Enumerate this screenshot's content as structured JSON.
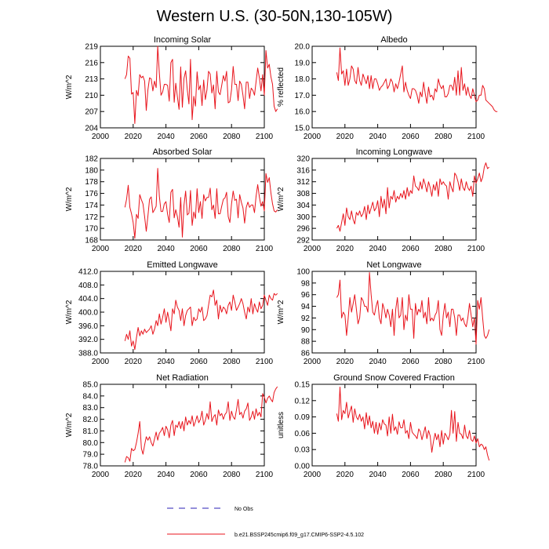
{
  "figure_title": "Western U.S. (30-50N,130-105W)",
  "colors": {
    "model": "#e8141c",
    "obs": "#2a1fb5"
  },
  "legend": {
    "obs_label": "No Obs",
    "model_label": "b.e21.BSSP245cmip6.f09_g17.CMIP6-SSP2-4.5.102"
  },
  "chart_data": [
    {
      "type": "line",
      "title": "Incoming Solar",
      "ylabel": "W/m^2",
      "xlim": [
        2000,
        2100
      ],
      "ylim": [
        204,
        219
      ],
      "xticks": [
        2000,
        2020,
        2040,
        2060,
        2080,
        2100
      ],
      "yticks": [
        204,
        207,
        210,
        213,
        216,
        219
      ],
      "ytick_labels": [
        "204",
        "207",
        "210",
        "213",
        "216",
        "219"
      ],
      "x_start": 2015,
      "values": [
        213.0,
        213.8,
        217.2,
        216.8,
        210.2,
        210.5,
        204.8,
        210.9,
        209.9,
        213.8,
        213.2,
        213.5,
        212.6,
        207.2,
        211.0,
        213.2,
        213.0,
        210.8,
        212.6,
        211.4,
        219.0,
        214.0,
        210.0,
        210.6,
        212.0,
        212.0,
        211.8,
        208.9,
        216.0,
        216.6,
        208.7,
        212.2,
        209.7,
        207.4,
        215.2,
        207.8,
        213.1,
        214.5,
        211.0,
        208.4,
        216.6,
        205.5,
        209.8,
        208.0,
        214.3,
        211.0,
        211.8,
        208.1,
        212.8,
        209.2,
        211.0,
        214.4,
        213.9,
        210.4,
        211.9,
        207.5,
        214.4,
        210.6,
        210.1,
        211.8,
        213.6,
        212.6,
        214.4,
        208.6,
        208.8,
        211.0,
        215.3,
        212.0,
        212.0,
        209.0,
        212.6,
        212.0,
        210.0,
        207.5,
        212.4,
        212.4,
        209.4,
        211.3,
        210.9,
        210.0,
        212.5,
        215.0,
        213.2,
        210.8,
        213.8,
        210.0,
        218.2,
        215.0,
        215.7,
        213.4,
        212.0,
        208.0,
        207.0,
        207.5
      ]
    },
    {
      "type": "line",
      "title": "Albedo",
      "ylabel": "% reflected",
      "xlim": [
        2000,
        2100
      ],
      "ylim": [
        15.0,
        20.0
      ],
      "xticks": [
        2000,
        2020,
        2040,
        2060,
        2080,
        2100
      ],
      "yticks": [
        15,
        16,
        17,
        18,
        19,
        20
      ],
      "ytick_labels": [
        "15.0",
        "16.0",
        "17.0",
        "18.0",
        "19.0",
        "20.0"
      ],
      "x_start": 2015,
      "values": [
        18.4,
        17.9,
        19.9,
        18.3,
        18.5,
        17.6,
        18.6,
        17.6,
        18.0,
        18.8,
        18.6,
        17.9,
        17.7,
        18.7,
        17.9,
        17.6,
        18.3,
        18.0,
        17.7,
        18.2,
        17.4,
        18.2,
        17.4,
        18.0,
        18.0,
        17.7,
        17.3,
        17.5,
        17.6,
        17.8,
        18.0,
        17.4,
        17.6,
        18.0,
        17.8,
        17.2,
        17.7,
        17.4,
        17.8,
        18.3,
        18.8,
        17.2,
        17.8,
        17.3,
        17.0,
        16.8,
        17.4,
        17.4,
        17.3,
        17.0,
        16.5,
        17.2,
        16.9,
        17.8,
        17.1,
        16.5,
        17.5,
        16.9,
        17.0,
        16.7,
        17.4,
        17.2,
        18.0,
        17.6,
        17.4,
        17.6,
        16.9,
        16.9,
        17.1,
        17.6,
        17.6,
        17.3,
        18.1,
        17.0,
        18.5,
        17.0,
        18.7,
        17.3,
        17.7,
        17.0,
        17.5,
        17.0,
        16.8,
        17.4,
        17.0,
        16.6,
        16.7,
        17.0,
        17.0,
        17.6,
        17.4,
        16.7,
        16.6,
        16.5,
        16.4,
        16.3,
        16.1,
        16.0,
        16.0
      ]
    },
    {
      "type": "line",
      "title": "Absorbed Solar",
      "ylabel": "W/m^2",
      "xlim": [
        2000,
        2100
      ],
      "ylim": [
        168,
        182
      ],
      "xticks": [
        2000,
        2020,
        2040,
        2060,
        2080,
        2100
      ],
      "yticks": [
        168,
        170,
        172,
        174,
        176,
        178,
        180,
        182
      ],
      "ytick_labels": [
        "168",
        "170",
        "172",
        "174",
        "176",
        "178",
        "180",
        "182"
      ],
      "x_start": 2015,
      "values": [
        173.6,
        175.0,
        177.4,
        173.6,
        172.5,
        171.0,
        168.3,
        172.4,
        171.7,
        175.8,
        174.9,
        174.2,
        172.0,
        169.5,
        172.1,
        175.0,
        175.4,
        172.7,
        173.2,
        173.8,
        180.3,
        175.5,
        172.9,
        172.9,
        174.2,
        174.6,
        172.4,
        171.0,
        176.2,
        176.7,
        171.8,
        173.2,
        172.0,
        170.2,
        175.3,
        168.5,
        174.0,
        176.4,
        172.3,
        172.6,
        176.5,
        170.5,
        172.8,
        171.7,
        176.8,
        172.7,
        174.6,
        171.7,
        175.8,
        174.7,
        175.3,
        175.3,
        176.9,
        173.2,
        174.0,
        171.7,
        176.8,
        172.5,
        172.5,
        173.8,
        175.0,
        175.2,
        176.2,
        172.0,
        171.0,
        174.2,
        176.4,
        174.8,
        175.0,
        171.8,
        175.8,
        174.5,
        173.5,
        170.9,
        173.6,
        174.5,
        173.6,
        174.0,
        174.0,
        172.7,
        175.5,
        177.5,
        175.4,
        173.8,
        174.6,
        173.0,
        179.4,
        177.9,
        178.7,
        176.1,
        174.2,
        173.0,
        172.8,
        173.2
      ]
    },
    {
      "type": "line",
      "title": "Incoming Longwave",
      "ylabel": "W/m^2",
      "xlim": [
        2000,
        2100
      ],
      "ylim": [
        292,
        320
      ],
      "xticks": [
        2000,
        2020,
        2040,
        2060,
        2080,
        2100
      ],
      "yticks": [
        292,
        296,
        300,
        304,
        308,
        312,
        316,
        320
      ],
      "ytick_labels": [
        "292",
        "296",
        "300",
        "304",
        "308",
        "312",
        "316",
        "320"
      ],
      "x_start": 2015,
      "values": [
        296.0,
        297.0,
        295.0,
        298.0,
        301.0,
        297.0,
        303.0,
        300.0,
        299.0,
        302.0,
        299.0,
        297.5,
        301.5,
        300.5,
        302.0,
        300.0,
        301.0,
        303.5,
        299.0,
        304.0,
        301.0,
        303.0,
        305.0,
        302.0,
        303.0,
        305.5,
        300.0,
        307.0,
        303.0,
        306.0,
        301.0,
        310.0,
        303.0,
        307.0,
        306.0,
        309.0,
        305.0,
        307.0,
        306.0,
        308.0,
        306.5,
        309.0,
        306.0,
        310.0,
        307.0,
        309.0,
        308.0,
        314.0,
        310.5,
        310.0,
        309.0,
        312.0,
        309.5,
        313.0,
        311.0,
        308.5,
        312.0,
        310.0,
        307.0,
        311.0,
        309.0,
        312.0,
        307.0,
        313.0,
        311.0,
        312.0,
        311.0,
        310.5,
        306.0,
        312.0,
        310.0,
        308.5,
        315.0,
        314.0,
        312.0,
        309.0,
        313.0,
        310.0,
        309.0,
        312.0,
        310.0,
        309.0,
        310.5,
        307.0,
        314.0,
        311.5,
        313.0,
        315.0,
        312.0,
        313.5,
        317.0,
        318.5,
        316.5,
        317.0
      ]
    },
    {
      "type": "line",
      "title": "Emitted Longwave",
      "ylabel": "W/m^2",
      "xlim": [
        2000,
        2100
      ],
      "ylim": [
        388.0,
        412.0
      ],
      "xticks": [
        2000,
        2020,
        2040,
        2060,
        2080,
        2100
      ],
      "yticks": [
        388,
        392,
        396,
        400,
        404,
        408,
        412
      ],
      "ytick_labels": [
        "388.0",
        "392.0",
        "396.0",
        "400.0",
        "404.0",
        "408.0",
        "412.0"
      ],
      "x_start": 2015,
      "values": [
        391.5,
        393.5,
        392.0,
        394.5,
        390.0,
        391.5,
        389.0,
        392.5,
        395.5,
        393.0,
        394.5,
        393.5,
        395.0,
        394.0,
        394.5,
        395.0,
        396.0,
        393.5,
        395.0,
        397.5,
        396.0,
        399.5,
        396.5,
        398.5,
        401.0,
        397.0,
        400.0,
        397.5,
        394.5,
        401.0,
        399.5,
        403.5,
        401.5,
        400.5,
        397.5,
        401.0,
        396.0,
        399.0,
        400.5,
        401.0,
        401.5,
        396.0,
        398.5,
        397.5,
        398.0,
        401.0,
        400.0,
        401.5,
        397.5,
        398.0,
        399.0,
        402.0,
        405.0,
        404.5,
        406.5,
        402.0,
        403.5,
        398.0,
        402.0,
        400.0,
        401.5,
        401.0,
        399.5,
        402.0,
        403.0,
        400.5,
        405.0,
        403.0,
        400.5,
        401.5,
        402.5,
        404.0,
        402.5,
        400.0,
        398.0,
        401.5,
        400.0,
        404.0,
        399.5,
        402.5,
        401.0,
        400.0,
        403.0,
        401.0,
        402.0,
        405.0,
        403.5,
        402.0,
        405.0,
        404.0,
        403.5,
        405.5,
        405.0,
        405.5
      ]
    },
    {
      "type": "line",
      "title": "Net Longwave",
      "ylabel": "W/m^2",
      "xlim": [
        2000,
        2100
      ],
      "ylim": [
        86,
        100
      ],
      "xticks": [
        2000,
        2020,
        2040,
        2060,
        2080,
        2100
      ],
      "yticks": [
        86,
        88,
        90,
        92,
        94,
        96,
        98,
        100
      ],
      "ytick_labels": [
        "86",
        "88",
        "90",
        "92",
        "94",
        "96",
        "98",
        "100"
      ],
      "x_start": 2015,
      "values": [
        95.5,
        96.0,
        98.5,
        92.0,
        93.0,
        92.5,
        89.0,
        92.0,
        95.5,
        93.0,
        94.5,
        96.0,
        93.5,
        91.0,
        92.0,
        95.5,
        95.0,
        94.0,
        94.0,
        93.0,
        99.8,
        96.0,
        93.0,
        92.5,
        94.0,
        95.0,
        92.0,
        91.0,
        94.5,
        93.5,
        92.0,
        93.5,
        92.5,
        90.5,
        93.5,
        89.0,
        93.5,
        95.5,
        92.0,
        92.5,
        95.5,
        90.0,
        92.5,
        91.5,
        96.0,
        93.5,
        93.5,
        88.5,
        94.5,
        92.5,
        93.5,
        93.0,
        95.0,
        92.0,
        93.0,
        91.0,
        95.5,
        91.5,
        92.0,
        91.5,
        92.5,
        93.0,
        95.0,
        90.0,
        89.0,
        92.5,
        94.5,
        92.0,
        93.0,
        90.5,
        93.5,
        93.5,
        92.0,
        89.0,
        92.5,
        92.5,
        91.5,
        92.0,
        91.0,
        90.5,
        92.0,
        94.5,
        92.5,
        90.5,
        92.0,
        87.5,
        95.0,
        93.5,
        95.5,
        92.0,
        89.0,
        88.5,
        89.0,
        90.0
      ]
    },
    {
      "type": "line",
      "title": "Net Radiation",
      "ylabel": "W/m^2",
      "xlim": [
        2000,
        2100
      ],
      "ylim": [
        78.0,
        85.0
      ],
      "xticks": [
        2000,
        2020,
        2040,
        2060,
        2080,
        2100
      ],
      "yticks": [
        78,
        79,
        80,
        81,
        82,
        83,
        84,
        85
      ],
      "ytick_labels": [
        "78.0",
        "79.0",
        "80.0",
        "81.0",
        "82.0",
        "83.0",
        "84.0",
        "85.0"
      ],
      "x_start": 2015,
      "values": [
        78.3,
        78.8,
        78.7,
        78.4,
        79.5,
        79.3,
        79.4,
        80.0,
        80.8,
        81.8,
        79.5,
        79.0,
        79.8,
        80.5,
        80.2,
        80.5,
        80.0,
        79.7,
        80.3,
        80.9,
        80.2,
        80.8,
        81.0,
        81.3,
        80.6,
        81.4,
        81.1,
        80.4,
        81.5,
        81.9,
        80.6,
        81.5,
        81.3,
        81.8,
        81.2,
        81.8,
        81.0,
        82.2,
        81.5,
        81.9,
        81.6,
        82.3,
        81.4,
        81.8,
        82.3,
        81.7,
        82.0,
        82.7,
        81.5,
        81.9,
        82.5,
        82.0,
        83.5,
        81.8,
        82.2,
        82.4,
        81.5,
        82.8,
        82.3,
        82.5,
        82.0,
        82.4,
        82.6,
        83.5,
        81.9,
        82.7,
        82.2,
        82.0,
        82.8,
        83.7,
        82.4,
        82.6,
        82.1,
        82.7,
        82.9,
        83.4,
        81.9,
        82.2,
        82.7,
        82.0,
        82.9,
        82.3,
        82.6,
        82.2,
        84.2,
        83.9,
        83.4,
        83.8,
        84.0,
        83.7,
        83.5,
        84.3,
        84.6,
        84.8
      ]
    },
    {
      "type": "line",
      "title": "Ground Snow Covered Fraction",
      "ylabel": "unitless",
      "xlim": [
        2000,
        2100
      ],
      "ylim": [
        0.0,
        0.15
      ],
      "xticks": [
        2000,
        2020,
        2040,
        2060,
        2080,
        2100
      ],
      "yticks": [
        0,
        0.03,
        0.06,
        0.09,
        0.12,
        0.15
      ],
      "ytick_labels": [
        "0.00",
        "0.03",
        "0.06",
        "0.09",
        "0.12",
        "0.15"
      ],
      "x_start": 2015,
      "values": [
        0.096,
        0.082,
        0.145,
        0.085,
        0.102,
        0.096,
        0.117,
        0.088,
        0.1,
        0.11,
        0.08,
        0.105,
        0.09,
        0.085,
        0.095,
        0.082,
        0.09,
        0.068,
        0.098,
        0.075,
        0.092,
        0.07,
        0.082,
        0.06,
        0.08,
        0.058,
        0.079,
        0.066,
        0.085,
        0.077,
        0.075,
        0.055,
        0.09,
        0.06,
        0.095,
        0.065,
        0.072,
        0.058,
        0.081,
        0.07,
        0.07,
        0.085,
        0.06,
        0.065,
        0.05,
        0.08,
        0.062,
        0.058,
        0.055,
        0.05,
        0.068,
        0.063,
        0.048,
        0.06,
        0.072,
        0.05,
        0.065,
        0.055,
        0.025,
        0.045,
        0.06,
        0.048,
        0.058,
        0.035,
        0.065,
        0.04,
        0.06,
        0.055,
        0.048,
        0.058,
        0.102,
        0.06,
        0.1,
        0.045,
        0.08,
        0.06,
        0.058,
        0.05,
        0.075,
        0.055,
        0.05,
        0.065,
        0.048,
        0.045,
        0.055,
        0.042,
        0.05,
        0.035,
        0.04,
        0.038,
        0.03,
        0.035,
        0.02,
        0.01
      ]
    }
  ]
}
